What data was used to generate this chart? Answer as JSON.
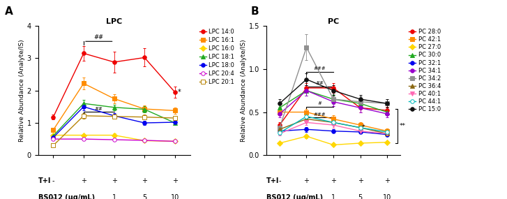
{
  "lpc_title": "LPC",
  "pc_title": "PC",
  "ylabel": "Relative Abundance (Analyte/IS)",
  "lpc_ylim": [
    0,
    4
  ],
  "lpc_yticks": [
    0,
    1,
    2,
    3,
    4
  ],
  "pc_ylim": [
    0,
    1.5
  ],
  "pc_yticks": [
    0.0,
    0.5,
    1.0,
    1.5
  ],
  "lpc_series": {
    "LPC 14:0": {
      "color": "#EE0000",
      "marker": "o",
      "markerfacecolor": "#EE0000",
      "markeredgecolor": "#EE0000",
      "values": [
        1.18,
        3.15,
        2.88,
        3.02,
        1.95
      ],
      "errors": [
        0.08,
        0.22,
        0.32,
        0.28,
        0.18
      ]
    },
    "LPC 16:1": {
      "color": "#FF8C00",
      "marker": "s",
      "markerfacecolor": "#FF8C00",
      "markeredgecolor": "#FF8C00",
      "values": [
        0.78,
        2.22,
        1.75,
        1.43,
        1.38
      ],
      "errors": [
        0.07,
        0.18,
        0.14,
        0.11,
        0.09
      ]
    },
    "LPC 16:0": {
      "color": "#FFD700",
      "marker": "D",
      "markerfacecolor": "#FFD700",
      "markeredgecolor": "#FFD700",
      "values": [
        0.62,
        0.62,
        0.62,
        0.45,
        0.43
      ],
      "errors": [
        0.04,
        0.04,
        0.06,
        0.03,
        0.03
      ]
    },
    "LPC 18:1": {
      "color": "#22AA22",
      "marker": "^",
      "markerfacecolor": "#22AA22",
      "markeredgecolor": "#22AA22",
      "values": [
        0.6,
        1.6,
        1.48,
        1.42,
        1.0
      ],
      "errors": [
        0.05,
        0.11,
        0.09,
        0.09,
        0.07
      ]
    },
    "LPC 18:0": {
      "color": "#0000EE",
      "marker": "o",
      "markerfacecolor": "#0000EE",
      "markeredgecolor": "#0000EE",
      "values": [
        0.55,
        1.5,
        1.22,
        1.0,
        1.02
      ],
      "errors": [
        0.04,
        0.11,
        0.09,
        0.07,
        0.07
      ]
    },
    "LPC 20:4": {
      "color": "#CC00CC",
      "marker": "o",
      "markerfacecolor": "white",
      "markeredgecolor": "#CC00CC",
      "values": [
        0.5,
        0.5,
        0.48,
        0.46,
        0.43
      ],
      "errors": [
        0.04,
        0.04,
        0.03,
        0.03,
        0.03
      ]
    },
    "LPC 20:1": {
      "color": "#B8860B",
      "marker": "s",
      "markerfacecolor": "white",
      "markeredgecolor": "#B8860B",
      "values": [
        0.3,
        1.22,
        1.2,
        1.18,
        1.15
      ],
      "errors": [
        0.02,
        0.09,
        0.07,
        0.07,
        0.07
      ]
    }
  },
  "pc_series": {
    "PC 28:0": {
      "color": "#EE0000",
      "marker": "o",
      "markerfacecolor": "#EE0000",
      "markeredgecolor": "#EE0000",
      "values": [
        0.35,
        0.78,
        0.78,
        0.55,
        0.52
      ],
      "errors": [
        0.03,
        0.06,
        0.06,
        0.05,
        0.04
      ]
    },
    "PC 42:1": {
      "color": "#FF8C00",
      "marker": "s",
      "markerfacecolor": "#FF8C00",
      "markeredgecolor": "#FF8C00",
      "values": [
        0.5,
        0.5,
        0.42,
        0.35,
        0.28
      ],
      "errors": [
        0.04,
        0.04,
        0.04,
        0.03,
        0.03
      ]
    },
    "PC 27:0": {
      "color": "#FFD700",
      "marker": "D",
      "markerfacecolor": "#FFD700",
      "markeredgecolor": "#FFD700",
      "values": [
        0.14,
        0.22,
        0.12,
        0.14,
        0.15
      ],
      "errors": [
        0.01,
        0.02,
        0.01,
        0.01,
        0.01
      ]
    },
    "PC 30:0": {
      "color": "#22AA22",
      "marker": "^",
      "markerfacecolor": "#22AA22",
      "markeredgecolor": "#22AA22",
      "values": [
        0.55,
        0.75,
        0.65,
        0.6,
        0.5
      ],
      "errors": [
        0.05,
        0.06,
        0.05,
        0.05,
        0.04
      ]
    },
    "PC 32:1": {
      "color": "#0000EE",
      "marker": "o",
      "markerfacecolor": "#0000EE",
      "markeredgecolor": "#0000EE",
      "values": [
        0.28,
        0.3,
        0.28,
        0.27,
        0.24
      ],
      "errors": [
        0.02,
        0.03,
        0.02,
        0.02,
        0.02
      ]
    },
    "PC 34:1": {
      "color": "#9900CC",
      "marker": "o",
      "markerfacecolor": "#9900CC",
      "markeredgecolor": "#9900CC",
      "values": [
        0.48,
        0.75,
        0.62,
        0.55,
        0.48
      ],
      "errors": [
        0.04,
        0.06,
        0.05,
        0.05,
        0.04
      ]
    },
    "PC 34:2": {
      "color": "#909090",
      "marker": "s",
      "markerfacecolor": "#909090",
      "markeredgecolor": "#909090",
      "values": [
        0.32,
        1.25,
        0.65,
        0.62,
        0.6
      ],
      "errors": [
        0.03,
        0.15,
        0.06,
        0.06,
        0.05
      ]
    },
    "PC 36:4": {
      "color": "#8B6914",
      "marker": "^",
      "markerfacecolor": "#8B6914",
      "markeredgecolor": "#8B6914",
      "values": [
        0.3,
        0.42,
        0.38,
        0.32,
        0.25
      ],
      "errors": [
        0.03,
        0.04,
        0.03,
        0.03,
        0.02
      ]
    },
    "PC 40:1": {
      "color": "#FF69B4",
      "marker": "v",
      "markerfacecolor": "#FF69B4",
      "markeredgecolor": "#FF69B4",
      "values": [
        0.25,
        0.38,
        0.35,
        0.28,
        0.25
      ],
      "errors": [
        0.02,
        0.03,
        0.03,
        0.02,
        0.02
      ]
    },
    "PC 44:1": {
      "color": "#00BBBB",
      "marker": "o",
      "markerfacecolor": "white",
      "markeredgecolor": "#00BBBB",
      "values": [
        0.26,
        0.45,
        0.38,
        0.32,
        0.27
      ],
      "errors": [
        0.02,
        0.04,
        0.03,
        0.03,
        0.02
      ]
    },
    "PC 15:0": {
      "color": "#111111",
      "marker": "o",
      "markerfacecolor": "#111111",
      "markeredgecolor": "#111111",
      "values": [
        0.6,
        0.88,
        0.75,
        0.65,
        0.6
      ],
      "errors": [
        0.05,
        0.07,
        0.06,
        0.05,
        0.05
      ]
    }
  },
  "x_positions": [
    0,
    1,
    2,
    3,
    4
  ],
  "ti_labels": [
    "-",
    "+",
    "+",
    "+",
    "+"
  ],
  "bs_labels": [
    "-",
    "-",
    "1",
    "5",
    "10"
  ],
  "background_color": "#FFFFFF",
  "fontsize": 7,
  "title_fontsize": 8,
  "legend_fontsize": 6,
  "marker_size": 4,
  "linewidth": 1.0
}
